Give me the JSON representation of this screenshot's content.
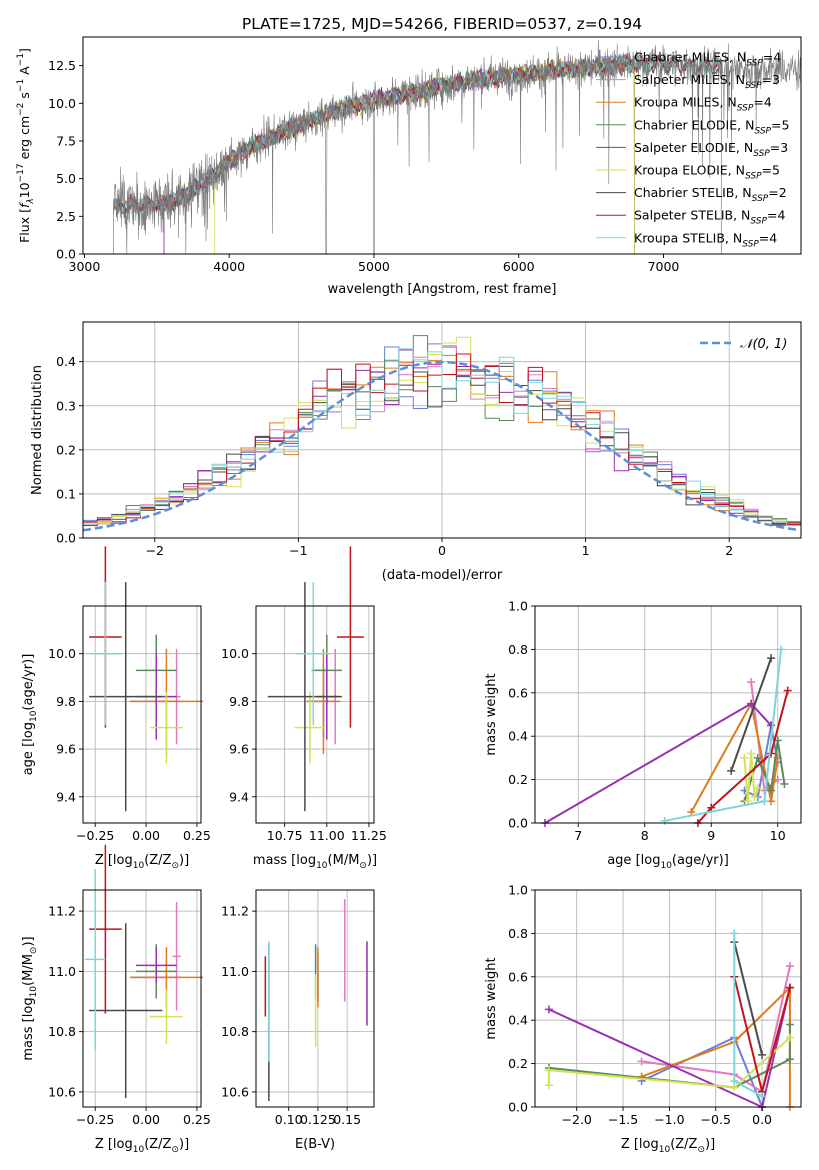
{
  "figure": {
    "title": "PLATE=1725, MJD=54266, FIBERID=0537, z=0.194"
  },
  "models": [
    {
      "name": "Chabrier MILES",
      "nssp": "4",
      "color": "#6a7fdb"
    },
    {
      "name": "Salpeter MILES",
      "nssp": "3",
      "color": "#e377c2"
    },
    {
      "name": "Kroupa MILES",
      "nssp": "4",
      "color": "#e07b1a"
    },
    {
      "name": "Chabrier ELODIE",
      "nssp": "5",
      "color": "#5a8a5a"
    },
    {
      "name": "Salpeter ELODIE",
      "nssp": "3",
      "color": "#9a2fb0"
    },
    {
      "name": "Kroupa ELODIE",
      "nssp": "5",
      "color": "#d4e157"
    },
    {
      "name": "Chabrier STELIB",
      "nssp": "2",
      "color": "#4a4a4a"
    },
    {
      "name": "Salpeter STELIB",
      "nssp": "4",
      "color": "#c0141c"
    },
    {
      "name": "Kroupa STELIB",
      "nssp": "4",
      "color": "#7fd6d6"
    }
  ],
  "chart_data": [
    {
      "id": "spectrum",
      "type": "line",
      "xlabel": "wavelength [Angstrom, rest frame]",
      "ylabel": "Flux [f$_\\lambda$10$^{-17}$ erg cm$^{-2}$ s$^{-1}$ A$^{-1}$]",
      "ylabel_parts": {
        "pre": "Flux [",
        "f": "f",
        "lam": "λ",
        "ten": "10",
        "e1": "−17",
        "mid": " erg cm",
        "e2": "−2",
        "s": " s",
        "e3": "−1",
        "A": " A",
        "e4": "−1",
        "end": "]"
      },
      "xlim": [
        2990,
        7950
      ],
      "ylim": [
        0,
        14.4
      ],
      "xticks": [
        3000,
        4000,
        5000,
        6000,
        7000
      ],
      "yticks": [
        0.0,
        2.5,
        5.0,
        7.5,
        10.0,
        12.5
      ],
      "xtick_labels": [
        "3000",
        "4000",
        "5000",
        "6000",
        "7000"
      ],
      "ytick_labels": [
        "0.0",
        "2.5",
        "5.0",
        "7.5",
        "10.0",
        "12.5"
      ],
      "continuum_knots": {
        "x": [
          3200,
          3400,
          3600,
          3700,
          3800,
          3900,
          4000,
          4200,
          4400,
          4600,
          4800,
          5000,
          5200,
          5400,
          5600,
          5800,
          6000,
          6200,
          6400,
          6600,
          6800,
          7000,
          7200,
          7400,
          7600,
          7950
        ],
        "y": [
          3.1,
          3.3,
          3.4,
          4.0,
          4.6,
          5.3,
          6.2,
          7.4,
          8.2,
          9.0,
          9.7,
          10.2,
          10.6,
          11.0,
          11.4,
          11.7,
          11.9,
          12.1,
          12.3,
          12.5,
          12.6,
          12.6,
          12.5,
          12.4,
          12.3,
          12.2
        ]
      },
      "data_range": [
        3200,
        7950
      ],
      "model_ranges": [
        [
          3200,
          6800
        ],
        [
          3200,
          6800
        ],
        [
          3200,
          6800
        ],
        [
          3550,
          6800
        ],
        [
          3550,
          6800
        ],
        [
          3900,
          6800
        ],
        [
          3200,
          7400
        ],
        [
          3200,
          7400
        ],
        [
          3200,
          7400
        ]
      ]
    },
    {
      "id": "residual-histogram",
      "type": "histogram",
      "xlabel": "(data-model)/error",
      "ylabel": "Normed distribution",
      "xlim": [
        -2.5,
        2.5
      ],
      "ylim": [
        0,
        0.49
      ],
      "xticks": [
        -2,
        -1,
        0,
        1,
        2
      ],
      "xtick_labels": [
        "−2",
        "−1",
        "0",
        "1",
        "2"
      ],
      "yticks": [
        0.0,
        0.1,
        0.2,
        0.3,
        0.4
      ],
      "ytick_labels": [
        "0.0",
        "0.1",
        "0.2",
        "0.3",
        "0.4"
      ],
      "bins": 50,
      "legend": {
        "label": "𝒩(0, 1)",
        "position": "top-right"
      }
    },
    {
      "id": "age-vs-Z",
      "type": "errorbar",
      "xlabel": "Z [log$_{10}$(Z/Z$_\\odot$)]",
      "ylabel": "age  [log$_{10}$(age/yr)]",
      "xlim": [
        -0.31,
        0.27
      ],
      "ylim": [
        9.29,
        10.2
      ],
      "xticks": [
        -0.25,
        0.0,
        0.25
      ],
      "xtick_labels": [
        "−0.25",
        "0.00",
        "0.25"
      ],
      "yticks": [
        9.4,
        9.6,
        9.8,
        10.0
      ],
      "ytick_labels": [
        "9.4",
        "9.6",
        "9.8",
        "10.0"
      ],
      "points": [
        {
          "m": 0,
          "x": 0.05,
          "xe": 0.12,
          "y": 9.8,
          "ye": 0.15
        },
        {
          "m": 1,
          "x": 0.15,
          "xe": 0.02,
          "y": 9.82,
          "ye": 0.2
        },
        {
          "m": 2,
          "x": 0.1,
          "xe": 0.18,
          "y": 9.8,
          "ye": 0.22
        },
        {
          "m": 3,
          "x": 0.05,
          "xe": 0.1,
          "y": 9.93,
          "ye": 0.15
        },
        {
          "m": 4,
          "x": 0.05,
          "xe": 0.1,
          "y": 9.82,
          "ye": 0.18
        },
        {
          "m": 5,
          "x": 0.1,
          "xe": 0.08,
          "y": 9.69,
          "ye": 0.15
        },
        {
          "m": 6,
          "x": -0.1,
          "xe": 0.18,
          "y": 9.82,
          "ye": 0.48
        },
        {
          "m": 7,
          "x": -0.2,
          "xe": 0.08,
          "y": 10.07,
          "ye": 0.38
        },
        {
          "m": 8,
          "x": -0.2,
          "xe": 0.08,
          "y": 10.0,
          "ye": 0.3
        }
      ]
    },
    {
      "id": "age-vs-mass",
      "type": "errorbar",
      "xlabel": "mass [log$_{10}$(M/M$_\\odot$)]",
      "ylabel": "",
      "xlim": [
        10.58,
        11.28
      ],
      "ylim": [
        9.29,
        10.2
      ],
      "xticks": [
        10.75,
        11.0,
        11.25
      ],
      "xtick_labels": [
        "10.75",
        "11.00",
        "11.25"
      ],
      "yticks": [
        9.4,
        9.6,
        9.8,
        10.0
      ],
      "ytick_labels": [
        "9.4",
        "9.6",
        "9.8",
        "10.0"
      ],
      "points": [
        {
          "m": 0,
          "x": 10.98,
          "xe": 0.08,
          "y": 9.8,
          "ye": 0.15
        },
        {
          "m": 1,
          "x": 11.05,
          "xe": 0.02,
          "y": 9.82,
          "ye": 0.2
        },
        {
          "m": 2,
          "x": 10.98,
          "xe": 0.1,
          "y": 9.8,
          "ye": 0.22
        },
        {
          "m": 3,
          "x": 11.0,
          "xe": 0.09,
          "y": 9.93,
          "ye": 0.15
        },
        {
          "m": 4,
          "x": 11.0,
          "xe": 0.06,
          "y": 9.82,
          "ye": 0.18
        },
        {
          "m": 5,
          "x": 10.9,
          "xe": 0.09,
          "y": 9.69,
          "ye": 0.15
        },
        {
          "m": 6,
          "x": 10.87,
          "xe": 0.22,
          "y": 9.82,
          "ye": 0.48
        },
        {
          "m": 7,
          "x": 11.14,
          "xe": 0.08,
          "y": 10.07,
          "ye": 0.38
        },
        {
          "m": 8,
          "x": 10.92,
          "xe": 0.1,
          "y": 10.0,
          "ye": 0.3
        }
      ]
    },
    {
      "id": "mass-weight-vs-age",
      "type": "line",
      "xlabel": "age  [log$_{10}$(age/yr)]",
      "ylabel": "mass weight",
      "xlim": [
        6.35,
        10.35
      ],
      "ylim": [
        0,
        1.0
      ],
      "xticks": [
        7,
        8,
        9,
        10
      ],
      "xtick_labels": [
        "7",
        "8",
        "9",
        "10"
      ],
      "yticks": [
        0.0,
        0.2,
        0.4,
        0.6,
        0.8,
        1.0
      ],
      "ytick_labels": [
        "0.0",
        "0.2",
        "0.4",
        "0.6",
        "0.8",
        "1.0"
      ],
      "series": [
        {
          "m": 0,
          "x": [
            9.5,
            9.7,
            9.9,
            10.0
          ],
          "y": [
            0.15,
            0.12,
            0.45,
            0.28
          ]
        },
        {
          "m": 1,
          "x": [
            9.6,
            9.8,
            10.0
          ],
          "y": [
            0.65,
            0.15,
            0.2
          ]
        },
        {
          "m": 2,
          "x": [
            8.7,
            9.6,
            9.9,
            10.0
          ],
          "y": [
            0.05,
            0.55,
            0.1,
            0.3
          ]
        },
        {
          "m": 3,
          "x": [
            9.5,
            9.7,
            9.9,
            10.0,
            10.1
          ],
          "y": [
            0.1,
            0.3,
            0.15,
            0.38,
            0.18
          ]
        },
        {
          "m": 4,
          "x": [
            6.5,
            9.6,
            9.9
          ],
          "y": [
            0.0,
            0.55,
            0.45
          ]
        },
        {
          "m": 5,
          "x": [
            9.5,
            9.55,
            9.6,
            9.65,
            9.7
          ],
          "y": [
            0.3,
            0.1,
            0.32,
            0.12,
            0.16
          ]
        },
        {
          "m": 6,
          "x": [
            9.3,
            9.9
          ],
          "y": [
            0.24,
            0.76
          ]
        },
        {
          "m": 7,
          "x": [
            8.8,
            9.0,
            9.9,
            10.15
          ],
          "y": [
            0.0,
            0.07,
            0.32,
            0.61
          ]
        },
        {
          "m": 8,
          "x": [
            8.3,
            9.8,
            10.05
          ],
          "y": [
            0.01,
            0.1,
            0.8
          ]
        }
      ]
    },
    {
      "id": "mass-vs-Z",
      "type": "errorbar",
      "xlabel": "Z [log$_{10}$(Z/Z$_\\odot$)]",
      "ylabel": "mass [log$_{10}$(M/M$_\\odot$)]",
      "xlim": [
        -0.31,
        0.27
      ],
      "ylim": [
        10.55,
        11.27
      ],
      "xticks": [
        -0.25,
        0.0,
        0.25
      ],
      "xtick_labels": [
        "−0.25",
        "0.00",
        "0.25"
      ],
      "yticks": [
        10.6,
        10.8,
        11.0,
        11.2
      ],
      "ytick_labels": [
        "10.6",
        "10.8",
        "11.0",
        "11.2"
      ],
      "points": [
        {
          "m": 0,
          "x": 0.05,
          "xe": 0.12,
          "y": 10.98,
          "ye": 0.06
        },
        {
          "m": 1,
          "x": 0.15,
          "xe": 0.02,
          "y": 11.05,
          "ye": 0.18
        },
        {
          "m": 2,
          "x": 0.1,
          "xe": 0.18,
          "y": 10.98,
          "ye": 0.1
        },
        {
          "m": 3,
          "x": 0.05,
          "xe": 0.1,
          "y": 11.0,
          "ye": 0.09
        },
        {
          "m": 4,
          "x": 0.05,
          "xe": 0.1,
          "y": 11.02,
          "ye": 0.06
        },
        {
          "m": 5,
          "x": 0.1,
          "xe": 0.08,
          "y": 10.85,
          "ye": 0.09
        },
        {
          "m": 6,
          "x": -0.1,
          "xe": 0.18,
          "y": 10.87,
          "ye": 0.29
        },
        {
          "m": 7,
          "x": -0.2,
          "xe": 0.08,
          "y": 11.14,
          "ye": 0.28
        },
        {
          "m": 8,
          "x": -0.25,
          "xe": 0.05,
          "y": 11.04,
          "ye": 0.3
        }
      ]
    },
    {
      "id": "mass-vs-EBV",
      "type": "errorbar",
      "xlabel": "E(B-V)",
      "ylabel": "",
      "xlim": [
        0.072,
        0.173
      ],
      "ylim": [
        10.55,
        11.27
      ],
      "xticks": [
        0.1,
        0.125,
        0.15
      ],
      "xtick_labels": [
        "0.10",
        "0.125",
        "0.15"
      ],
      "yticks": [
        10.6,
        10.8,
        11.0,
        11.2
      ],
      "ytick_labels": [
        "10.6",
        "10.8",
        "11.0",
        "11.2"
      ],
      "points": [
        {
          "m": 0,
          "x": 0.125,
          "xe": 0,
          "y": 10.98,
          "ye": 0.08
        },
        {
          "m": 1,
          "x": 0.148,
          "xe": 0,
          "y": 11.07,
          "ye": 0.17
        },
        {
          "m": 2,
          "x": 0.125,
          "xe": 0,
          "y": 10.98,
          "ye": 0.1
        },
        {
          "m": 3,
          "x": 0.123,
          "xe": 0,
          "y": 11.0,
          "ye": 0.09
        },
        {
          "m": 4,
          "x": 0.167,
          "xe": 0,
          "y": 10.96,
          "ye": 0.14
        },
        {
          "m": 5,
          "x": 0.123,
          "xe": 0,
          "y": 10.87,
          "ye": 0.12
        },
        {
          "m": 6,
          "x": 0.083,
          "xe": 0,
          "y": 10.83,
          "ye": 0.26
        },
        {
          "m": 7,
          "x": 0.08,
          "xe": 0,
          "y": 10.95,
          "ye": 0.1
        },
        {
          "m": 8,
          "x": 0.083,
          "xe": 0,
          "y": 10.9,
          "ye": 0.2
        }
      ]
    },
    {
      "id": "mass-weight-vs-Z",
      "type": "line",
      "xlabel": "Z [log$_{10}$(Z/Z$_\\odot$)]",
      "ylabel": "mass weight",
      "xlim": [
        -2.45,
        0.42
      ],
      "ylim": [
        0,
        1.0
      ],
      "xticks": [
        -2.0,
        -1.5,
        -1.0,
        -0.5,
        0.0
      ],
      "xtick_labels": [
        "−2.0",
        "−1.5",
        "−1.0",
        "−0.5",
        "0.0"
      ],
      "yticks": [
        0.0,
        0.2,
        0.4,
        0.6,
        0.8,
        1.0
      ],
      "ytick_labels": [
        "0.0",
        "0.2",
        "0.4",
        "0.6",
        "0.8",
        "1.0"
      ],
      "series": [
        {
          "m": 0,
          "x": [
            -1.3,
            -0.3,
            0.0
          ],
          "y": [
            0.12,
            0.32,
            0.0
          ]
        },
        {
          "m": 1,
          "x": [
            -1.3,
            -0.3,
            0.0,
            0.3
          ],
          "y": [
            0.21,
            0.15,
            0.07,
            0.65
          ]
        },
        {
          "m": 2,
          "x": [
            -1.3,
            -0.3,
            0.3,
            0.3
          ],
          "y": [
            0.14,
            0.3,
            0.55,
            0.0
          ]
        },
        {
          "m": 3,
          "x": [
            -2.3,
            -0.3,
            0.3,
            0.3
          ],
          "y": [
            0.18,
            0.09,
            0.22,
            0.38
          ]
        },
        {
          "m": 4,
          "x": [
            -2.3,
            0.0,
            0.3
          ],
          "y": [
            0.45,
            0.0,
            0.55
          ]
        },
        {
          "m": 5,
          "x": [
            -2.3,
            -2.3,
            -0.3,
            0.3
          ],
          "y": [
            0.1,
            0.17,
            0.09,
            0.32
          ]
        },
        {
          "m": 6,
          "x": [
            -0.3,
            0.0
          ],
          "y": [
            0.76,
            0.24
          ]
        },
        {
          "m": 7,
          "x": [
            -0.3,
            0.0,
            0.3
          ],
          "y": [
            0.6,
            0.07,
            0.55
          ]
        },
        {
          "m": 8,
          "x": [
            -0.3,
            -0.3,
            0.0
          ],
          "y": [
            0.8,
            0.12,
            0.05
          ]
        }
      ]
    }
  ]
}
